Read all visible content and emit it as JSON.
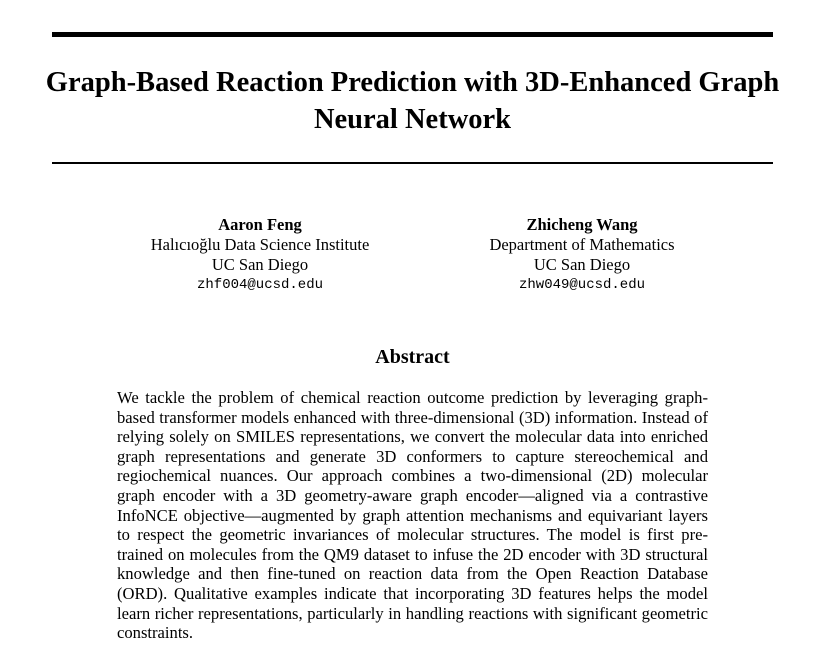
{
  "paper": {
    "title": "Graph-Based Reaction Prediction with 3D-Enhanced Graph Neural Network",
    "authors": [
      {
        "name": "Aaron Feng",
        "affiliation": "Halıcıoğlu Data Science Institute",
        "institution": "UC San Diego",
        "email": "zhf004@ucsd.edu"
      },
      {
        "name": "Zhicheng Wang",
        "affiliation": "Department of Mathematics",
        "institution": "UC San Diego",
        "email": "zhw049@ucsd.edu"
      }
    ],
    "abstract_heading": "Abstract",
    "abstract": "We tackle the problem of chemical reaction outcome prediction by leveraging graph-based transformer models enhanced with three-dimensional (3D) information. Instead of relying solely on SMILES representations, we convert the molecular data into enriched graph representations and generate 3D conformers to capture stereochemical and regiochemical nuances. Our approach combines a two-dimensional (2D) molecular graph encoder with a 3D geometry-aware graph encoder—aligned via a contrastive InfoNCE objective—augmented by graph attention mechanisms and equivariant layers to respect the geometric invariances of molecular structures. The model is first pre-trained on molecules from the QM9 dataset to infuse the 2D encoder with 3D structural knowledge and then fine-tuned on reaction data from the Open Reaction Database (ORD). Qualitative examples indicate that incorporating 3D features helps the model learn richer representations, particularly in handling reactions with significant geometric constraints."
  }
}
